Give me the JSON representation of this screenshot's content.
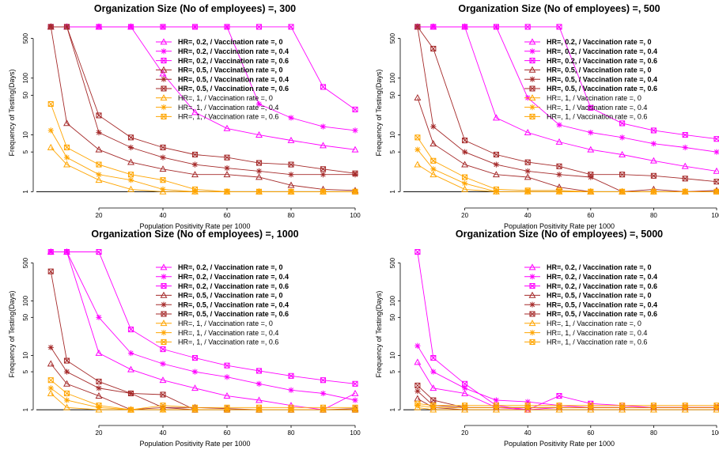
{
  "figure": {
    "background": "#ffffff",
    "colors": {
      "magenta": "#ff00ff",
      "darkred": "#a52a2a",
      "orange": "#ffa500",
      "axis": "#000000"
    }
  },
  "chart_data": [
    {
      "type": "line",
      "title": "Organization Size (No of employees) =, 300",
      "xlabel": "Population Positivity Rate per 1000",
      "ylabel": "Frequency of Testing(Days)",
      "xlim": [
        0,
        100
      ],
      "ylim": [
        0.55,
        1100
      ],
      "yscale": "log",
      "xticks": [
        20,
        40,
        60,
        80,
        100
      ],
      "yticks": [
        1,
        5,
        10,
        50,
        100,
        500
      ],
      "legend_position": "top-right",
      "reference_line": 1,
      "x": [
        5,
        10,
        20,
        30,
        40,
        50,
        60,
        70,
        80,
        90,
        100
      ],
      "series": [
        {
          "name": "HR=, 0.2, / Vaccination rate =, 0",
          "color": "magenta",
          "marker": "triangle",
          "values": [
            800,
            800,
            800,
            800,
            120,
            25,
            13,
            10,
            8,
            6.5,
            5.5
          ]
        },
        {
          "name": "HR=, 0.2, / Vaccination rate =, 0.4",
          "color": "magenta",
          "marker": "star",
          "values": [
            800,
            800,
            800,
            800,
            800,
            800,
            800,
            35,
            20,
            14,
            12
          ]
        },
        {
          "name": "HR=, 0.2, / Vaccination rate =, 0.6",
          "color": "magenta",
          "marker": "box-x",
          "values": [
            800,
            800,
            800,
            800,
            800,
            800,
            800,
            800,
            800,
            70,
            28
          ]
        },
        {
          "name": "HR=, 0.5, / Vaccination rate =, 0",
          "color": "darkred",
          "marker": "triangle",
          "values": [
            800,
            16,
            5.5,
            3.3,
            2.5,
            2,
            2,
            1.8,
            1.3,
            1.1,
            1.05
          ]
        },
        {
          "name": "HR=, 0.5, / Vaccination rate =, 0.4",
          "color": "darkred",
          "marker": "star",
          "values": [
            800,
            800,
            11,
            6,
            4,
            3,
            2.6,
            2.3,
            2,
            2,
            2
          ]
        },
        {
          "name": "HR=, 0.5, / Vaccination rate =, 0.6",
          "color": "darkred",
          "marker": "box-x",
          "values": [
            800,
            800,
            22,
            9,
            6,
            4.5,
            4,
            3.2,
            3,
            2.5,
            2.1
          ]
        },
        {
          "name": "HR=, 1, / Vaccination rate =, 0",
          "color": "orange",
          "marker": "triangle",
          "values": [
            6,
            3,
            1.6,
            1.1,
            1,
            1,
            1,
            1,
            1,
            1,
            1
          ]
        },
        {
          "name": "HR=, 1, / Vaccination rate =, 0.4",
          "color": "orange",
          "marker": "star",
          "values": [
            12,
            4,
            2,
            1.6,
            1.1,
            1,
            1,
            1,
            1,
            1,
            1
          ]
        },
        {
          "name": "HR=, 1, / Vaccination rate =, 0.6",
          "color": "orange",
          "marker": "box-x",
          "values": [
            35,
            6,
            3,
            2,
            1.6,
            1.1,
            1,
            1,
            1,
            1,
            1
          ]
        }
      ]
    },
    {
      "type": "line",
      "title": "Organization Size (No of employees) =, 500",
      "xlabel": "Population Positivity Rate per 1000",
      "ylabel": "Frequency of Testing(Days)",
      "xlim": [
        0,
        100
      ],
      "ylim": [
        0.55,
        1100
      ],
      "yscale": "log",
      "xticks": [
        20,
        40,
        60,
        80,
        100
      ],
      "yticks": [
        1,
        5,
        10,
        50,
        100,
        500
      ],
      "legend_position": "top-right",
      "reference_line": 1,
      "x": [
        5,
        10,
        20,
        30,
        40,
        50,
        60,
        70,
        80,
        90,
        100
      ],
      "series": [
        {
          "name": "HR=, 0.2, / Vaccination rate =, 0",
          "color": "magenta",
          "marker": "triangle",
          "values": [
            800,
            800,
            800,
            20,
            11,
            7.5,
            5.5,
            4.5,
            3.5,
            2.8,
            2.3
          ]
        },
        {
          "name": "HR=, 0.2, / Vaccination rate =, 0.4",
          "color": "magenta",
          "marker": "star",
          "values": [
            800,
            800,
            800,
            800,
            45,
            15,
            11,
            9,
            7,
            6,
            5
          ]
        },
        {
          "name": "HR=, 0.2, / Vaccination rate =, 0.6",
          "color": "magenta",
          "marker": "box-x",
          "values": [
            800,
            800,
            800,
            800,
            800,
            800,
            30,
            16,
            12,
            10,
            8.5
          ]
        },
        {
          "name": "HR=, 0.5, / Vaccination rate =, 0",
          "color": "darkred",
          "marker": "triangle",
          "values": [
            45,
            7,
            3,
            2,
            1.8,
            1.2,
            1,
            1,
            1.1,
            1,
            1.05
          ]
        },
        {
          "name": "HR=, 0.5, / Vaccination rate =, 0.4",
          "color": "darkred",
          "marker": "star",
          "values": [
            800,
            14,
            5,
            3,
            2.3,
            2,
            1.8,
            1,
            1,
            1,
            1
          ]
        },
        {
          "name": "HR=, 0.5, / Vaccination rate =, 0.6",
          "color": "darkred",
          "marker": "box-x",
          "values": [
            800,
            330,
            8,
            4.5,
            3.3,
            2.8,
            2,
            2,
            1.9,
            1.7,
            1.5
          ]
        },
        {
          "name": "HR=, 1, / Vaccination rate =, 0",
          "color": "orange",
          "marker": "triangle",
          "values": [
            3,
            2,
            1.1,
            1,
            1,
            1,
            1,
            1,
            1,
            1,
            1
          ]
        },
        {
          "name": "HR=, 1, / Vaccination rate =, 0.4",
          "color": "orange",
          "marker": "star",
          "values": [
            5.5,
            2.5,
            1.4,
            1,
            1,
            1,
            1,
            1,
            1,
            1,
            1
          ]
        },
        {
          "name": "HR=, 1, / Vaccination rate =, 0.6",
          "color": "orange",
          "marker": "box-x",
          "values": [
            9,
            3.5,
            1.8,
            1.1,
            1.05,
            1.05,
            1,
            1,
            1,
            1,
            1
          ]
        }
      ]
    },
    {
      "type": "line",
      "title": "Organization Size (No of employees) =, 1000",
      "xlabel": "Population Positivity Rate per 1000",
      "ylabel": "Frequency of Testing(Days)",
      "xlim": [
        0,
        100
      ],
      "ylim": [
        0.55,
        1100
      ],
      "yscale": "log",
      "xticks": [
        20,
        40,
        60,
        80,
        100
      ],
      "yticks": [
        1,
        5,
        10,
        50,
        100,
        500
      ],
      "legend_position": "top-right",
      "reference_line": 1,
      "x": [
        5,
        10,
        20,
        30,
        40,
        50,
        60,
        70,
        80,
        90,
        100
      ],
      "series": [
        {
          "name": "HR=, 0.2, / Vaccination rate =, 0",
          "color": "magenta",
          "marker": "triangle",
          "values": [
            800,
            800,
            11,
            5.5,
            3.5,
            2.5,
            1.8,
            1.5,
            1.2,
            1,
            2
          ]
        },
        {
          "name": "HR=, 0.2, / Vaccination rate =, 0.4",
          "color": "magenta",
          "marker": "star",
          "values": [
            800,
            800,
            50,
            11,
            7,
            5,
            4,
            3,
            2.3,
            2,
            1.5
          ]
        },
        {
          "name": "HR=, 0.2, / Vaccination rate =, 0.6",
          "color": "magenta",
          "marker": "box-x",
          "values": [
            800,
            800,
            800,
            30,
            13,
            9,
            6.5,
            5.2,
            4.2,
            3.5,
            3
          ]
        },
        {
          "name": "HR=, 0.5, / Vaccination rate =, 0",
          "color": "darkred",
          "marker": "triangle",
          "values": [
            7,
            3,
            1.8,
            1,
            1.1,
            1.1,
            1.05,
            1,
            1,
            1,
            1.05
          ]
        },
        {
          "name": "HR=, 0.5, / Vaccination rate =, 0.4",
          "color": "darkred",
          "marker": "star",
          "values": [
            14,
            5,
            2.5,
            2,
            1.1,
            1,
            1,
            1,
            1,
            1,
            1
          ]
        },
        {
          "name": "HR=, 0.5, / Vaccination rate =, 0.6",
          "color": "darkred",
          "marker": "box-x",
          "values": [
            350,
            8,
            3.3,
            2,
            1.9,
            1,
            1,
            1,
            1,
            1,
            1
          ]
        },
        {
          "name": "HR=, 1, / Vaccination rate =, 0",
          "color": "orange",
          "marker": "triangle",
          "values": [
            2,
            1.1,
            1,
            1,
            1,
            1,
            1,
            1,
            1,
            1,
            1
          ]
        },
        {
          "name": "HR=, 1, / Vaccination rate =, 0.4",
          "color": "orange",
          "marker": "star",
          "values": [
            2.5,
            1.5,
            1.1,
            1,
            1,
            1,
            1,
            1,
            1,
            1,
            1
          ]
        },
        {
          "name": "HR=, 1, / Vaccination rate =, 0.6",
          "color": "orange",
          "marker": "box-x",
          "values": [
            3.5,
            2,
            1.2,
            1,
            1.2,
            1.1,
            1.1,
            1.1,
            1.1,
            1.1,
            1.1
          ]
        }
      ]
    },
    {
      "type": "line",
      "title": "Organization Size (No of employees) =, 5000",
      "xlabel": "Population Positivity Rate per 1000",
      "ylabel": "Frequency of Testing(Days)",
      "xlim": [
        0,
        100
      ],
      "ylim": [
        0.55,
        1100
      ],
      "yscale": "log",
      "xticks": [
        20,
        40,
        60,
        80,
        100
      ],
      "yticks": [
        1,
        5,
        10,
        50,
        100,
        500
      ],
      "legend_position": "top-right",
      "reference_line": 1,
      "x": [
        5,
        10,
        20,
        30,
        40,
        50,
        60,
        70,
        80,
        90,
        100
      ],
      "series": [
        {
          "name": "HR=, 0.2, / Vaccination rate =, 0",
          "color": "magenta",
          "marker": "triangle",
          "values": [
            7.5,
            2.5,
            2,
            1.1,
            1,
            1.1,
            1.1,
            1.1,
            1.1,
            1.1,
            1.1
          ]
        },
        {
          "name": "HR=, 0.2, / Vaccination rate =, 0.4",
          "color": "magenta",
          "marker": "star",
          "values": [
            15,
            5,
            2.5,
            1.5,
            1.4,
            1.2,
            1.1,
            1.1,
            1.1,
            1.1,
            1.1
          ]
        },
        {
          "name": "HR=, 0.2, / Vaccination rate =, 0.6",
          "color": "magenta",
          "marker": "box-x",
          "values": [
            800,
            9,
            3,
            1.2,
            1,
            1.8,
            1.3,
            1.2,
            1.1,
            1.1,
            1.1
          ]
        },
        {
          "name": "HR=, 0.5, / Vaccination rate =, 0",
          "color": "darkred",
          "marker": "triangle",
          "values": [
            1.6,
            1.1,
            1,
            1,
            1,
            1,
            1,
            1,
            1,
            1,
            1
          ]
        },
        {
          "name": "HR=, 0.5, / Vaccination rate =, 0.4",
          "color": "darkred",
          "marker": "star",
          "values": [
            2.2,
            1.2,
            1.1,
            1.1,
            1.1,
            1.1,
            1.1,
            1.1,
            1.1,
            1.1,
            1.1
          ]
        },
        {
          "name": "HR=, 0.5, / Vaccination rate =, 0.6",
          "color": "darkred",
          "marker": "box-x",
          "values": [
            2.8,
            1.5,
            1.1,
            1.1,
            1.1,
            1.1,
            1.1,
            1.1,
            1.1,
            1.1,
            1.1
          ]
        },
        {
          "name": "HR=, 1, / Vaccination rate =, 0",
          "color": "orange",
          "marker": "triangle",
          "values": [
            1.1,
            1,
            1,
            1,
            1,
            1,
            1,
            1,
            1,
            1,
            1
          ]
        },
        {
          "name": "HR=, 1, / Vaccination rate =, 0.4",
          "color": "orange",
          "marker": "star",
          "values": [
            1.2,
            1.1,
            1.1,
            1.1,
            1.1,
            1.1,
            1.1,
            1.1,
            1.1,
            1.1,
            1.1
          ]
        },
        {
          "name": "HR=, 1, / Vaccination rate =, 0.6",
          "color": "orange",
          "marker": "box-x",
          "values": [
            1.3,
            1.2,
            1.2,
            1.2,
            1.2,
            1.2,
            1.2,
            1.2,
            1.2,
            1.2,
            1.2
          ]
        }
      ]
    }
  ]
}
